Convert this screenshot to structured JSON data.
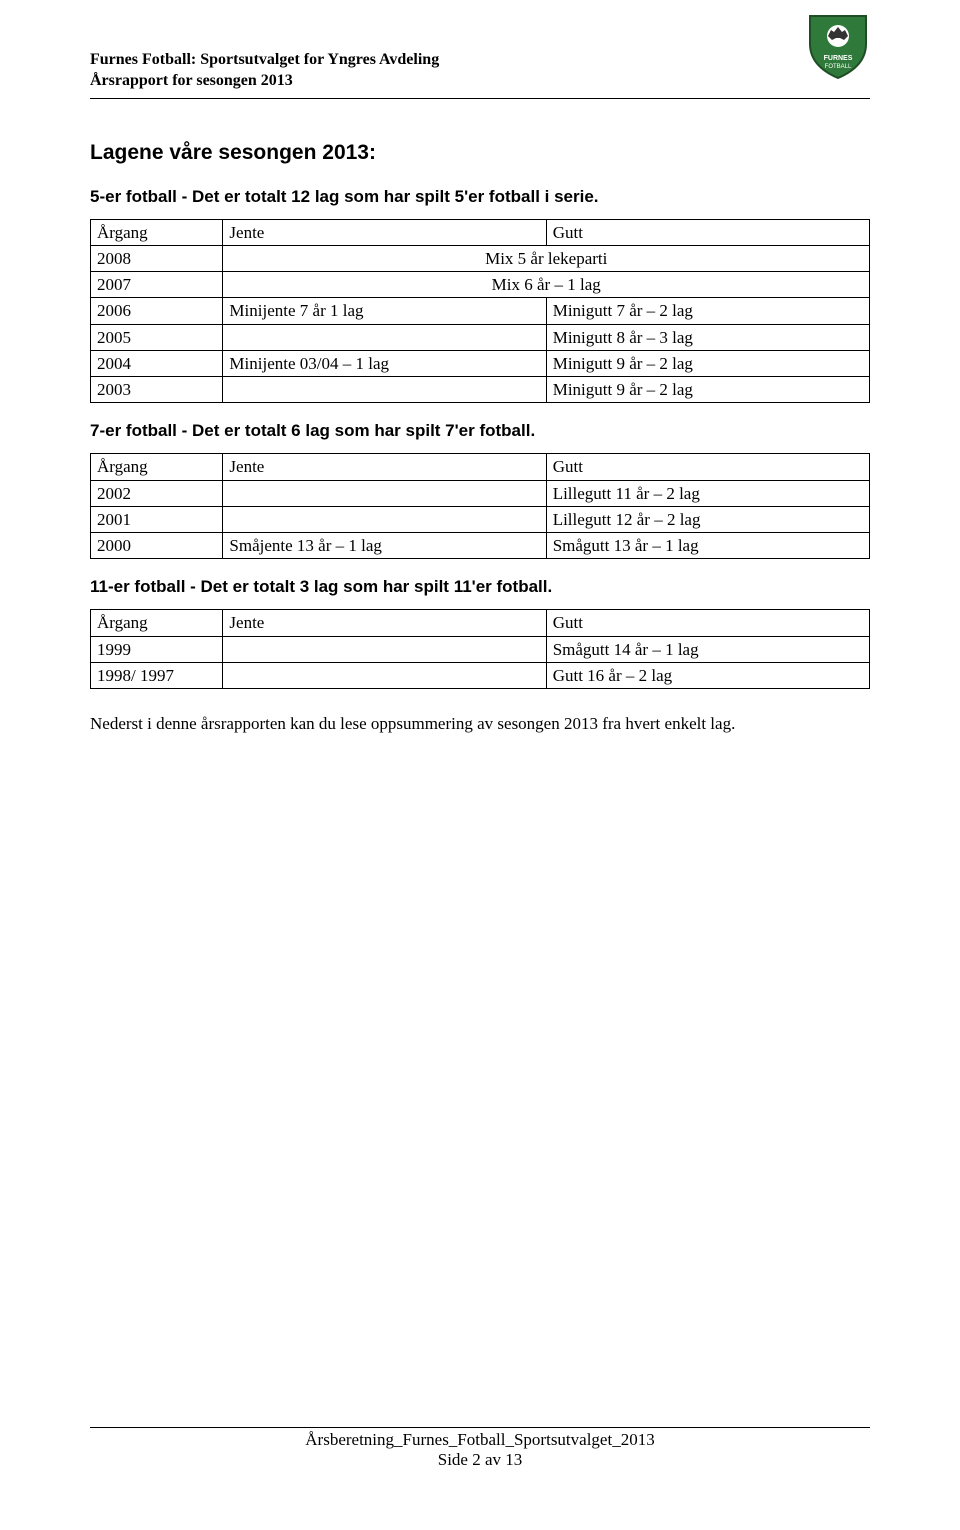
{
  "header": {
    "line1": "Furnes Fotball: Sportsutvalget for Yngres Avdeling",
    "line2": "Årsrapport for sesongen 2013"
  },
  "crest": {
    "shield_fill": "#2f7a3a",
    "shield_stroke": "#1e4d26",
    "ball_fill": "#ffffff",
    "text_fill": "#ffffff"
  },
  "main_title": "Lagene våre sesongen 2013:",
  "sections": [
    {
      "heading": "5-er fotball - Det er totalt 12 lag som har spilt 5'er fotball i serie.",
      "columns": [
        "Årgang",
        "Jente",
        "Gutt"
      ],
      "rows": [
        {
          "c1": "2008",
          "merged": "Mix 5 år lekeparti"
        },
        {
          "c1": "2007",
          "merged": "Mix 6 år – 1 lag"
        },
        {
          "c1": "2006",
          "c2": "Minijente 7 år 1 lag",
          "c3": "Minigutt 7 år – 2 lag"
        },
        {
          "c1": "2005",
          "c2": "",
          "c3": "Minigutt 8 år – 3 lag"
        },
        {
          "c1": "2004",
          "c2": "Minijente 03/04 – 1 lag",
          "c3": "Minigutt 9 år – 2 lag"
        },
        {
          "c1": "2003",
          "c2": "",
          "c3": "Minigutt 9 år – 2 lag"
        }
      ]
    },
    {
      "heading": "7-er fotball - Det er totalt 6 lag som har spilt 7'er fotball.",
      "columns": [
        "Årgang",
        "Jente",
        "Gutt"
      ],
      "rows": [
        {
          "c1": "2002",
          "c2": "",
          "c3": "Lillegutt 11 år – 2 lag"
        },
        {
          "c1": "2001",
          "c2": "",
          "c3": "Lillegutt 12 år – 2 lag"
        },
        {
          "c1": "2000",
          "c2": "Småjente 13 år – 1 lag",
          "c3": "Smågutt 13 år – 1 lag"
        }
      ]
    },
    {
      "heading": "11-er fotball - Det er totalt 3 lag som har spilt 11'er fotball.",
      "columns": [
        "Årgang",
        "Jente",
        "Gutt"
      ],
      "rows": [
        {
          "c1": "1999",
          "c2": "",
          "c3": "Smågutt 14 år – 1 lag"
        },
        {
          "c1": "1998/ 1997",
          "c2": "",
          "c3": "Gutt 16 år – 2 lag"
        }
      ]
    }
  ],
  "body_text": "Nederst i denne årsrapporten kan du lese oppsummering av sesongen 2013 fra hvert enkelt lag.",
  "footer": {
    "line1": "Årsberetning_Furnes_Fotball_Sportsutvalget_2013",
    "line2": "Side 2 av 13"
  }
}
